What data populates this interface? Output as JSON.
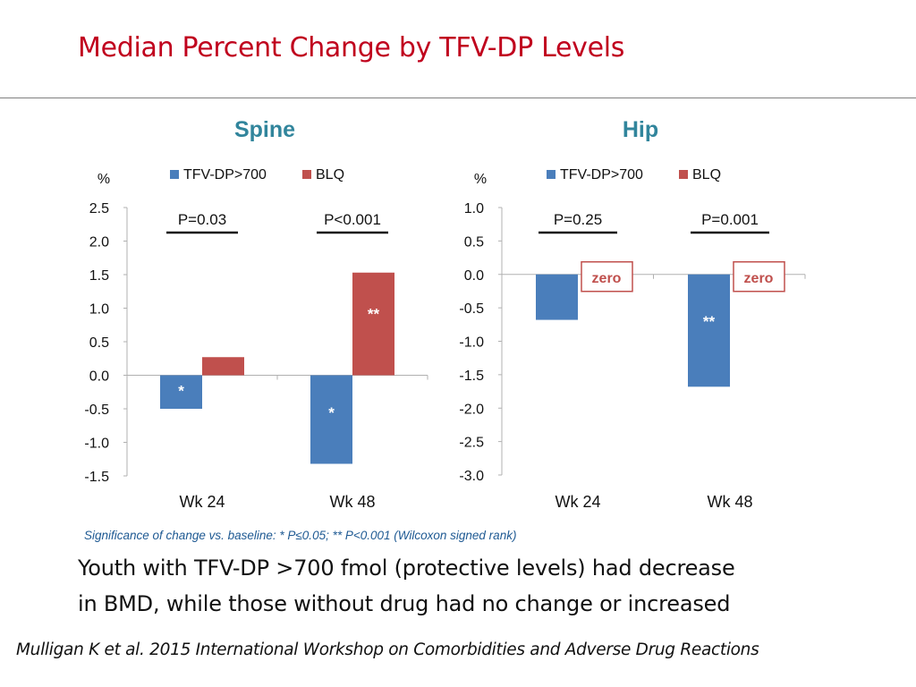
{
  "slide": {
    "title": "Median Percent Change by TFV-DP Levels",
    "caption_line1": "Youth with TFV-DP >700 fmol (protective levels) had decrease",
    "caption_line2": "in BMD, while those without drug had no change or increased",
    "citation": "Mulligan K et al. 2015 International Workshop on Comorbidities and Adverse Drug Reactions",
    "footnote": "Significance of change vs. baseline:  *  P≤0.05; ** P<0.001 (Wilcoxon signed rank)"
  },
  "colors": {
    "title": "#c0001d",
    "tfv": "#4a7ebb",
    "blq": "#c0504d",
    "heading": "#31859c",
    "footnote": "#1f5a93"
  },
  "chart_data": [
    {
      "type": "bar",
      "title": "Spine",
      "ylabel": "%",
      "ylim": [
        -1.5,
        2.5
      ],
      "yticks": [
        "2.5",
        "2.0",
        "1.5",
        "1.0",
        "0.5",
        "0.0",
        "-0.5",
        "-1.0",
        "-1.5"
      ],
      "categories": [
        "Wk 24",
        "Wk 48"
      ],
      "series": [
        {
          "name": "TFV-DP>700",
          "values": [
            -0.5,
            -1.32
          ],
          "labels": [
            "*",
            "*"
          ]
        },
        {
          "name": "BLQ",
          "values": [
            0.27,
            1.53
          ],
          "labels": [
            "",
            "**"
          ]
        }
      ],
      "pvalues": [
        "P=0.03",
        "P<0.001"
      ],
      "annotations": [
        null,
        null
      ]
    },
    {
      "type": "bar",
      "title": "Hip",
      "ylabel": "%",
      "ylim": [
        -3.0,
        1.0
      ],
      "yticks": [
        "1.0",
        "0.5",
        "0.0",
        "-0.5",
        "-1.0",
        "-1.5",
        "-2.0",
        "-2.5",
        "-3.0"
      ],
      "categories": [
        "Wk 24",
        "Wk 48"
      ],
      "series": [
        {
          "name": "TFV-DP>700",
          "values": [
            -0.68,
            -1.68
          ],
          "labels": [
            "",
            "**"
          ]
        },
        {
          "name": "BLQ",
          "values": [
            0,
            0
          ],
          "labels": [
            "",
            ""
          ]
        }
      ],
      "pvalues": [
        "P=0.25",
        "P=0.001"
      ],
      "annotations": [
        "zero",
        "zero"
      ]
    }
  ]
}
